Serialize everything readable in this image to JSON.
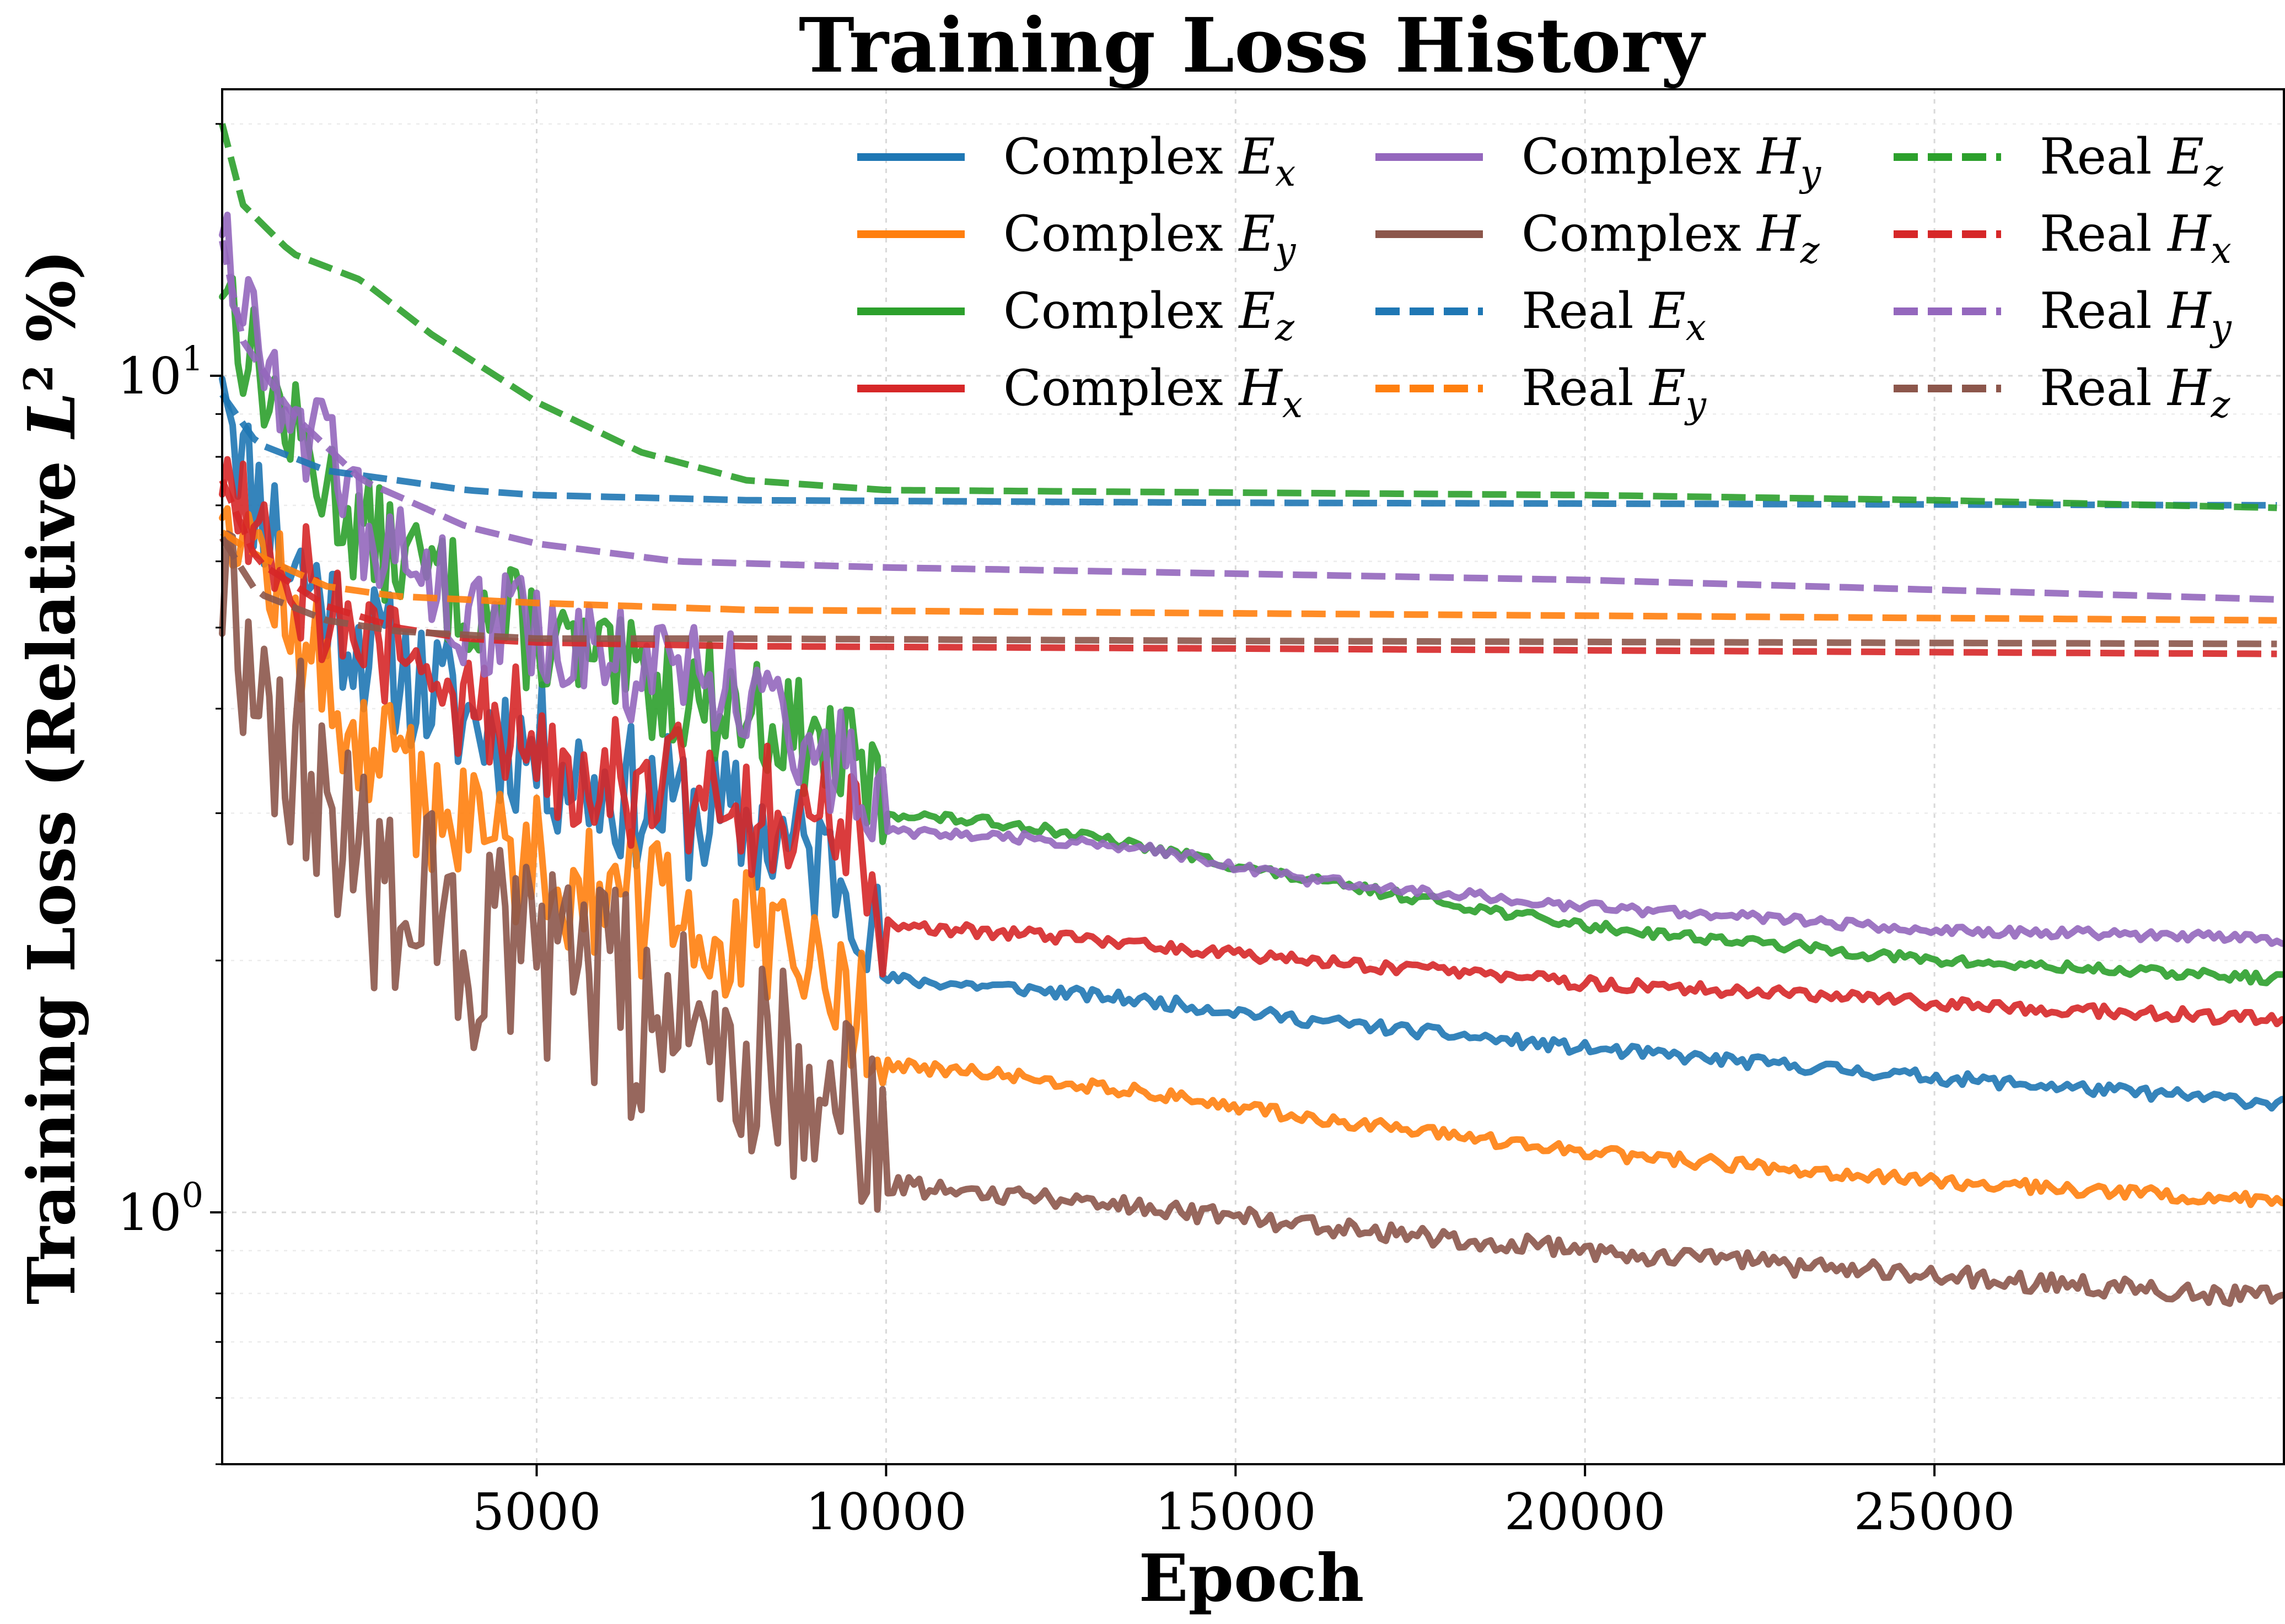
{
  "chart_data": {
    "type": "line",
    "title": "Training Loss History",
    "xlabel": "Epoch",
    "ylabel": "Training Loss (Relative L² %)",
    "ylabel_parts": {
      "pre": "Training Loss (Relative ",
      "sym": "L",
      "sup": "2",
      "post": " %)"
    },
    "xscale": "linear",
    "yscale": "log",
    "xlim": [
      500,
      30000
    ],
    "ylim": [
      0.5,
      22
    ],
    "xticks": [
      5000,
      10000,
      15000,
      20000,
      25000
    ],
    "xtick_labels": [
      "5000",
      "10000",
      "15000",
      "20000",
      "25000"
    ],
    "yticks": [
      1,
      10
    ],
    "ytick_labels": [
      {
        "base": "10",
        "exp": "0"
      },
      {
        "base": "10",
        "exp": "1"
      }
    ],
    "grid": true,
    "legend_position": "top-right",
    "series": [
      {
        "name": "Complex E_x",
        "label_prefix": "Complex",
        "field": "E",
        "sub": "x",
        "color": "#1f77b4",
        "style": "solid",
        "noise": 0.05,
        "seed": 11,
        "x": [
          500,
          800,
          1500,
          2500,
          4000,
          6000,
          8000,
          9600,
          10000,
          12000,
          14000,
          16000,
          20000,
          25000,
          30000
        ],
        "y": [
          11.0,
          7.8,
          6.0,
          4.8,
          3.9,
          3.2,
          2.9,
          2.5,
          1.9,
          1.85,
          1.78,
          1.7,
          1.57,
          1.45,
          1.35
        ]
      },
      {
        "name": "Complex E_y",
        "label_prefix": "Complex",
        "field": "E",
        "sub": "y",
        "color": "#ff7f0e",
        "style": "solid",
        "noise": 0.05,
        "seed": 12,
        "x": [
          500,
          800,
          1500,
          2500,
          4000,
          6000,
          8000,
          9600,
          10000,
          12000,
          14000,
          16000,
          20000,
          25000,
          30000
        ],
        "y": [
          7.5,
          6.8,
          5.0,
          3.6,
          2.9,
          2.4,
          2.1,
          1.8,
          1.5,
          1.45,
          1.38,
          1.3,
          1.18,
          1.09,
          1.03
        ]
      },
      {
        "name": "Complex E_z",
        "label_prefix": "Complex",
        "field": "E",
        "sub": "z",
        "color": "#2ca02c",
        "style": "solid",
        "noise": 0.04,
        "seed": 13,
        "x": [
          500,
          800,
          1500,
          2500,
          4000,
          6000,
          8000,
          9600,
          10000,
          12000,
          14000,
          16000,
          20000,
          25000,
          30000
        ],
        "y": [
          13.5,
          11.0,
          8.5,
          6.5,
          5.4,
          4.4,
          4.0,
          3.4,
          3.0,
          2.9,
          2.7,
          2.5,
          2.2,
          2.0,
          1.9
        ]
      },
      {
        "name": "Complex H_x",
        "label_prefix": "Complex",
        "field": "H",
        "sub": "x",
        "color": "#d62728",
        "style": "solid",
        "noise": 0.05,
        "seed": 14,
        "x": [
          500,
          800,
          1500,
          2500,
          4000,
          6000,
          8000,
          9600,
          10000,
          12000,
          14000,
          16000,
          20000,
          25000,
          30000
        ],
        "y": [
          8.0,
          7.2,
          6.0,
          4.8,
          4.0,
          3.4,
          3.1,
          2.8,
          2.2,
          2.15,
          2.08,
          2.0,
          1.88,
          1.78,
          1.7
        ]
      },
      {
        "name": "Complex H_y",
        "label_prefix": "Complex",
        "field": "H",
        "sub": "y",
        "color": "#9467bd",
        "style": "solid",
        "noise": 0.04,
        "seed": 15,
        "x": [
          500,
          800,
          1500,
          2500,
          4000,
          6000,
          8000,
          9600,
          10000,
          12000,
          14000,
          16000,
          20000,
          25000,
          30000
        ],
        "y": [
          16.0,
          12.0,
          9.5,
          6.5,
          5.2,
          4.6,
          4.2,
          3.3,
          2.85,
          2.8,
          2.7,
          2.5,
          2.32,
          2.18,
          2.12
        ]
      },
      {
        "name": "Complex H_z",
        "label_prefix": "Complex",
        "field": "H",
        "sub": "z",
        "color": "#8c564b",
        "style": "solid",
        "noise": 0.08,
        "seed": 16,
        "x": [
          500,
          800,
          1500,
          2500,
          4000,
          6000,
          8000,
          9600,
          10000,
          12000,
          14000,
          16000,
          20000,
          25000,
          30000
        ],
        "y": [
          5.8,
          5.0,
          3.5,
          2.6,
          2.1,
          1.8,
          1.6,
          1.35,
          1.08,
          1.05,
          1.01,
          0.97,
          0.9,
          0.84,
          0.79
        ]
      },
      {
        "name": "Real E_x",
        "label_prefix": "Real",
        "field": "E",
        "sub": "x",
        "color": "#1f77b4",
        "style": "dashed",
        "noise": 0,
        "seed": 21,
        "x": [
          500,
          1000,
          2000,
          3000,
          4000,
          5000,
          8000,
          15000,
          30000
        ],
        "y": [
          9.5,
          8.3,
          7.7,
          7.5,
          7.3,
          7.2,
          7.1,
          7.05,
          7.0
        ]
      },
      {
        "name": "Real E_y",
        "label_prefix": "Real",
        "field": "E",
        "sub": "y",
        "color": "#ff7f0e",
        "style": "dashed",
        "noise": 0,
        "seed": 22,
        "x": [
          500,
          1000,
          2000,
          3000,
          4000,
          5000,
          8000,
          15000,
          30000
        ],
        "y": [
          6.5,
          6.1,
          5.6,
          5.45,
          5.4,
          5.35,
          5.25,
          5.2,
          5.1
        ]
      },
      {
        "name": "Real E_z",
        "label_prefix": "Real",
        "field": "E",
        "sub": "z",
        "color": "#2ca02c",
        "style": "dashed",
        "noise": 0,
        "seed": 23,
        "x": [
          500,
          800,
          1500,
          2500,
          3500,
          5000,
          6500,
          8000,
          10000,
          15000,
          20000,
          25000,
          30000
        ],
        "y": [
          20.0,
          16.0,
          14.0,
          13.0,
          11.2,
          9.3,
          8.1,
          7.5,
          7.3,
          7.25,
          7.2,
          7.1,
          6.95
        ]
      },
      {
        "name": "Real H_x",
        "label_prefix": "Real",
        "field": "H",
        "sub": "x",
        "color": "#d62728",
        "style": "dashed",
        "noise": 0,
        "seed": 24,
        "x": [
          500,
          1000,
          2000,
          3000,
          4000,
          5000,
          8000,
          15000,
          30000
        ],
        "y": [
          7.5,
          6.0,
          5.3,
          5.0,
          4.85,
          4.8,
          4.75,
          4.72,
          4.65
        ]
      },
      {
        "name": "Real H_y",
        "label_prefix": "Real",
        "field": "H",
        "sub": "y",
        "color": "#9467bd",
        "style": "dashed",
        "noise": 0,
        "seed": 25,
        "x": [
          500,
          800,
          1500,
          2500,
          4000,
          5000,
          7000,
          10000,
          15000,
          20000,
          30000
        ],
        "y": [
          14.5,
          11.0,
          9.0,
          7.5,
          6.6,
          6.3,
          6.0,
          5.9,
          5.8,
          5.7,
          5.4
        ]
      },
      {
        "name": "Real H_z",
        "label_prefix": "Real",
        "field": "H",
        "sub": "z",
        "color": "#8c564b",
        "style": "dashed",
        "noise": 0,
        "seed": 26,
        "x": [
          500,
          1000,
          2000,
          3000,
          4000,
          5000,
          8000,
          15000,
          30000
        ],
        "y": [
          6.4,
          5.5,
          5.1,
          4.95,
          4.9,
          4.85,
          4.85,
          4.82,
          4.78
        ]
      }
    ]
  }
}
